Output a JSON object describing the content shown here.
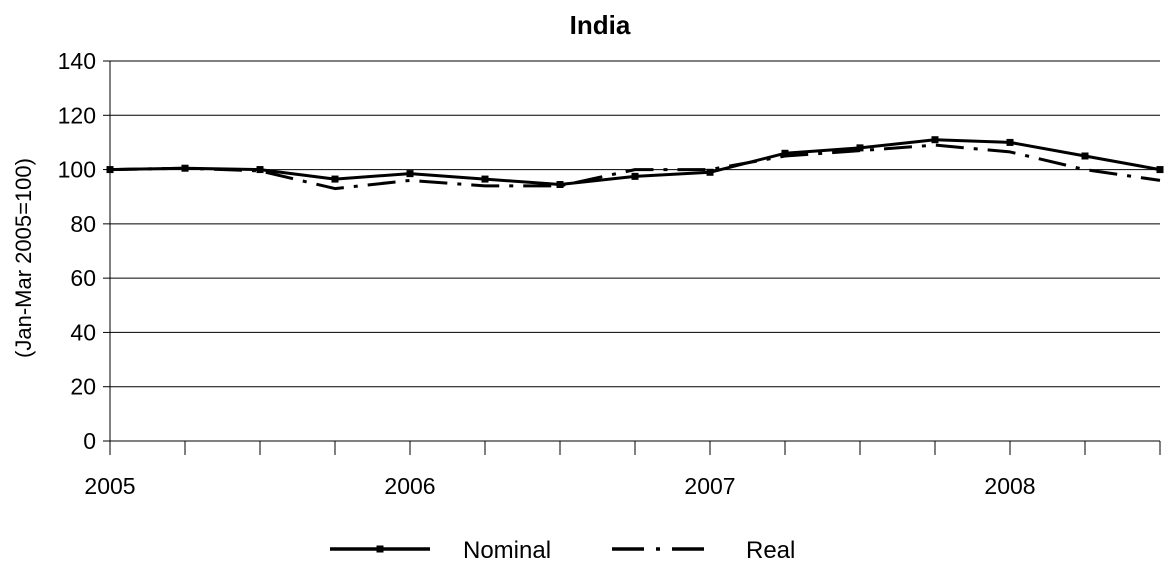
{
  "chart_data": {
    "type": "line",
    "title": "India",
    "xlabel": "",
    "ylabel": "(Jan-Mar 2005=100)",
    "ylim": [
      0,
      140
    ],
    "yticks": [
      0,
      20,
      40,
      60,
      80,
      100,
      120,
      140
    ],
    "xlim": [
      2005,
      2008.5
    ],
    "xticks": [
      "2005",
      "2006",
      "2007",
      "2008"
    ],
    "grid": "horizontal",
    "legend_position": "bottom",
    "x": [
      2005.0,
      2005.25,
      2005.5,
      2005.75,
      2006.0,
      2006.25,
      2006.5,
      2006.75,
      2007.0,
      2007.25,
      2007.5,
      2007.75,
      2008.0,
      2008.25,
      2008.5
    ],
    "series": [
      {
        "name": "Nominal",
        "style": "solid-with-square-markers",
        "color": "#000000",
        "values": [
          100,
          100.5,
          100,
          96.5,
          98.5,
          96.5,
          94.5,
          97.5,
          99,
          106,
          108,
          111,
          110,
          105,
          100
        ]
      },
      {
        "name": "Real",
        "style": "long-dash-dot",
        "color": "#000000",
        "values": [
          100,
          100.5,
          99.5,
          93,
          96,
          94,
          94,
          100,
          100,
          105,
          107,
          109,
          106.5,
          100,
          96
        ]
      }
    ]
  }
}
